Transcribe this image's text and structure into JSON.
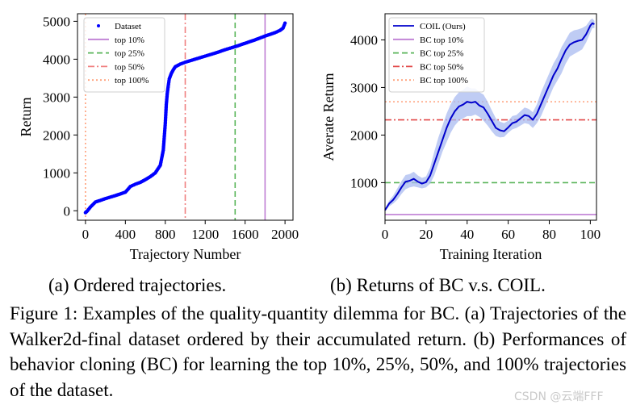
{
  "figure": {
    "caption_label": "Figure 1:",
    "caption_text": "Examples of the quality-quantity dilemma for BC. (a) Trajectories of the Walker2d-final dataset ordered by their accumulated return. (b) Performances of behavior cloning (BC) for learning the top 10%, 25%, 50%, and 100% trajectories of the dataset.",
    "subcaption_a": "(a) Ordered trajectories.",
    "subcaption_b": "(b) Returns of BC v.s. COIL."
  },
  "watermark": "CSDN @云端FFF",
  "chart_data": [
    {
      "type": "scatter",
      "title": "",
      "xlabel": "Trajectory Number",
      "ylabel": "Return",
      "xlim": [
        -80,
        2080
      ],
      "ylim": [
        -250,
        5200
      ],
      "xticks": [
        0,
        400,
        800,
        1200,
        1600,
        2000
      ],
      "yticks": [
        0,
        1000,
        2000,
        3000,
        4000,
        5000
      ],
      "legend_location": "top-left",
      "series": [
        {
          "name": "Dataset",
          "style": "dots",
          "color": "#0000ff",
          "x": [
            0,
            20,
            50,
            100,
            200,
            300,
            400,
            450,
            500,
            550,
            600,
            650,
            700,
            750,
            780,
            800,
            810,
            820,
            830,
            840,
            860,
            880,
            900,
            950,
            1000,
            1100,
            1200,
            1300,
            1400,
            1500,
            1600,
            1700,
            1800,
            1900,
            1950,
            1980,
            2000
          ],
          "y": [
            -50,
            0,
            100,
            230,
            320,
            400,
            490,
            640,
            700,
            750,
            820,
            900,
            1000,
            1200,
            1600,
            2300,
            2800,
            3100,
            3300,
            3480,
            3620,
            3720,
            3800,
            3870,
            3920,
            4000,
            4080,
            4160,
            4250,
            4330,
            4420,
            4510,
            4610,
            4700,
            4760,
            4820,
            4950
          ]
        },
        {
          "name": "top 10%",
          "style": "solid",
          "color": "#bf7fd4",
          "vline": 1800
        },
        {
          "name": "top 25%",
          "style": "dashed",
          "color": "#5ab55a",
          "vline": 1500
        },
        {
          "name": "top 50%",
          "style": "dashdot",
          "color": "#f08080",
          "vline": 1000
        },
        {
          "name": "top 100%",
          "style": "dotted",
          "color": "#ffa07a",
          "vline": 0
        }
      ]
    },
    {
      "type": "line",
      "title": "",
      "xlabel": "Training Iteration",
      "ylabel": "Averate Return",
      "xlim": [
        0,
        103
      ],
      "ylim": [
        210,
        4550
      ],
      "xticks": [
        0,
        20,
        40,
        60,
        80,
        100
      ],
      "yticks": [
        1000,
        2000,
        3000,
        4000
      ],
      "legend_location": "top-left",
      "series": [
        {
          "name": "COIL (Ours)",
          "style": "solid",
          "color": "#0000cc",
          "x": [
            0,
            2,
            4,
            6,
            8,
            10,
            12,
            14,
            16,
            18,
            20,
            22,
            24,
            26,
            28,
            30,
            32,
            34,
            36,
            38,
            40,
            42,
            44,
            46,
            48,
            50,
            52,
            54,
            56,
            58,
            60,
            62,
            64,
            66,
            68,
            70,
            72,
            74,
            76,
            78,
            80,
            82,
            84,
            86,
            88,
            90,
            92,
            94,
            96,
            98,
            100,
            101,
            102
          ],
          "y": [
            420,
            560,
            640,
            760,
            900,
            1020,
            1040,
            1080,
            1020,
            980,
            1010,
            1150,
            1400,
            1650,
            1900,
            2150,
            2350,
            2500,
            2600,
            2640,
            2700,
            2680,
            2700,
            2620,
            2580,
            2450,
            2300,
            2150,
            2100,
            2080,
            2160,
            2250,
            2280,
            2350,
            2420,
            2400,
            2320,
            2450,
            2650,
            2850,
            3050,
            3250,
            3400,
            3600,
            3780,
            3900,
            3950,
            3980,
            4000,
            4120,
            4300,
            4350,
            4330
          ],
          "band_lower": [
            400,
            500,
            560,
            640,
            760,
            860,
            900,
            920,
            900,
            880,
            900,
            980,
            1150,
            1400,
            1650,
            1850,
            2050,
            2200,
            2300,
            2350,
            2400,
            2400,
            2430,
            2380,
            2300,
            2200,
            2080,
            1980,
            1950,
            1960,
            2050,
            2120,
            2150,
            2200,
            2250,
            2230,
            2150,
            2250,
            2400,
            2600,
            2800,
            3000,
            3150,
            3300,
            3500,
            3650,
            3700,
            3750,
            3800,
            3950,
            4150,
            4250,
            4250
          ],
          "band_upper": [
            450,
            620,
            730,
            880,
            1030,
            1160,
            1180,
            1230,
            1150,
            1100,
            1130,
            1320,
            1650,
            1950,
            2200,
            2450,
            2650,
            2800,
            2900,
            2950,
            3020,
            2980,
            2980,
            2900,
            2850,
            2700,
            2520,
            2350,
            2280,
            2250,
            2300,
            2400,
            2420,
            2500,
            2580,
            2550,
            2480,
            2650,
            2900,
            3100,
            3300,
            3500,
            3650,
            3850,
            4000,
            4150,
            4200,
            4220,
            4250,
            4300,
            4420,
            4450,
            4400
          ],
          "band_color": "#aabbf0"
        },
        {
          "name": "BC top 10%",
          "style": "solid",
          "color": "#bf7fd4",
          "hline": 330
        },
        {
          "name": "BC top 25%",
          "style": "dashed",
          "color": "#5ab55a",
          "hline": 1000
        },
        {
          "name": "BC top 50%",
          "style": "dashdot",
          "color": "#e24a4a",
          "hline": 2320
        },
        {
          "name": "BC top 100%",
          "style": "dotted",
          "color": "#ffa07a",
          "hline": 2700
        }
      ]
    }
  ]
}
